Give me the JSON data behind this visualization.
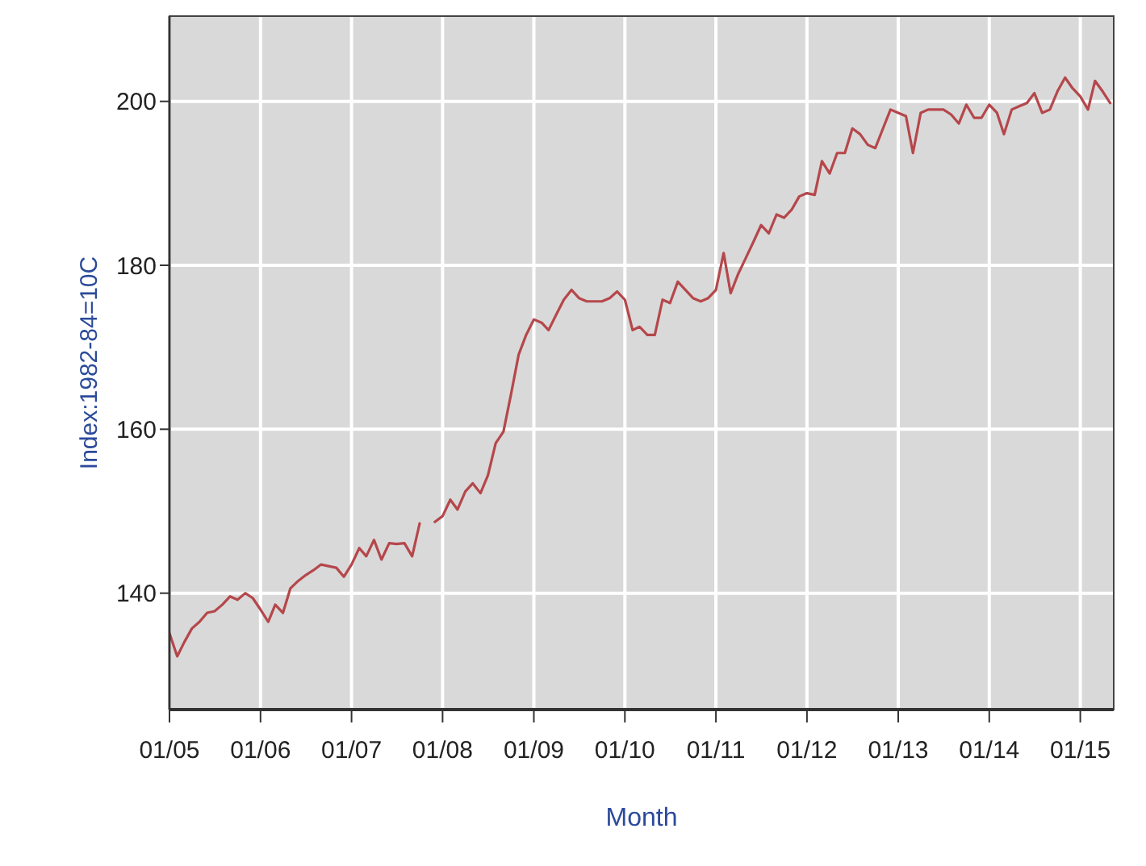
{
  "chart_data": {
    "type": "line",
    "xlabel": "Month",
    "ylabel": "Index:1982-84=10C",
    "x": [
      "2005-01",
      "2005-02",
      "2005-03",
      "2005-04",
      "2005-05",
      "2005-06",
      "2005-07",
      "2005-08",
      "2005-09",
      "2005-10",
      "2005-11",
      "2005-12",
      "2006-01",
      "2006-02",
      "2006-03",
      "2006-04",
      "2006-05",
      "2006-06",
      "2006-07",
      "2006-08",
      "2006-09",
      "2006-10",
      "2006-11",
      "2006-12",
      "2007-01",
      "2007-02",
      "2007-03",
      "2007-04",
      "2007-05",
      "2007-06",
      "2007-07",
      "2007-08",
      "2007-09",
      "2007-10",
      "2007-11",
      "2007-12",
      "2008-01",
      "2008-02",
      "2008-03",
      "2008-04",
      "2008-05",
      "2008-06",
      "2008-07",
      "2008-08",
      "2008-09",
      "2008-10",
      "2008-11",
      "2008-12",
      "2009-01",
      "2009-02",
      "2009-03",
      "2009-04",
      "2009-05",
      "2009-06",
      "2009-07",
      "2009-08",
      "2009-09",
      "2009-10",
      "2009-11",
      "2009-12",
      "2010-01",
      "2010-02",
      "2010-03",
      "2010-04",
      "2010-05",
      "2010-06",
      "2010-07",
      "2010-08",
      "2010-09",
      "2010-10",
      "2010-11",
      "2010-12",
      "2011-01",
      "2011-02",
      "2011-03",
      "2011-04",
      "2011-05",
      "2011-06",
      "2011-07",
      "2011-08",
      "2011-09",
      "2011-10",
      "2011-11",
      "2011-12",
      "2012-01",
      "2012-02",
      "2012-03",
      "2012-04",
      "2012-05",
      "2012-06",
      "2012-07",
      "2012-08",
      "2012-09",
      "2012-10",
      "2012-11",
      "2012-12",
      "2013-01",
      "2013-02",
      "2013-03",
      "2013-04",
      "2013-05",
      "2013-06",
      "2013-07",
      "2013-08",
      "2013-09",
      "2013-10",
      "2013-11",
      "2013-12",
      "2014-01",
      "2014-02",
      "2014-03",
      "2014-04",
      "2014-05",
      "2014-06",
      "2014-07",
      "2014-08",
      "2014-09",
      "2014-10",
      "2014-11",
      "2014-12",
      "2015-01",
      "2015-02",
      "2015-03",
      "2015-04",
      "2015-05"
    ],
    "series": [
      {
        "color": "#b5474b",
        "values": [
          135.1,
          132.3,
          134,
          135.7,
          136.5,
          137.6,
          137.8,
          138.6,
          139.6,
          139.2,
          140,
          139.4,
          138,
          136.5,
          138.6,
          137.6,
          140.6,
          141.5,
          142.2,
          142.8,
          143.5,
          143.3,
          143.1,
          142,
          143.5,
          145.5,
          144.5,
          146.5,
          144.1,
          146.1,
          146,
          146.1,
          144.5,
          148.5,
          null,
          148.7,
          149.4,
          151.4,
          150.2,
          152.4,
          153.4,
          152.2,
          154.4,
          158.3,
          159.7,
          164.2,
          169.1,
          171.5,
          173.4,
          173,
          172.1,
          174,
          175.8,
          177,
          176,
          175.6,
          175.6,
          175.6,
          176,
          176.8,
          175.8,
          172.1,
          172.5,
          171.5,
          171.5,
          175.8,
          175.4,
          178,
          177,
          176,
          175.6,
          176,
          177,
          181.5,
          176.6,
          179,
          180.9,
          182.9,
          184.9,
          183.9,
          186.2,
          185.8,
          186.8,
          188.4,
          188.8,
          188.6,
          192.7,
          191.2,
          193.7,
          193.7,
          196.7,
          196,
          194.7,
          194.3,
          196.7,
          199,
          198.6,
          198.2,
          193.7,
          198.6,
          199,
          199,
          199,
          198.4,
          197.3,
          199.6,
          198,
          198,
          199.6,
          198.6,
          196,
          199,
          199.4,
          199.8,
          201,
          198.6,
          199,
          201.2,
          202.9,
          201.6,
          200.6,
          199,
          202.5,
          201.2,
          199.8
        ]
      }
    ],
    "xlim": [
      "2005-01",
      "2015-05-15"
    ],
    "xticks": [
      {
        "value": "2005-01",
        "label": "01/05"
      },
      {
        "value": "2006-01",
        "label": "01/06"
      },
      {
        "value": "2007-01",
        "label": "01/07"
      },
      {
        "value": "2008-01",
        "label": "01/08"
      },
      {
        "value": "2009-01",
        "label": "01/09"
      },
      {
        "value": "2010-01",
        "label": "01/10"
      },
      {
        "value": "2011-01",
        "label": "01/11"
      },
      {
        "value": "2012-01",
        "label": "01/12"
      },
      {
        "value": "2013-01",
        "label": "01/13"
      },
      {
        "value": "2014-01",
        "label": "01/14"
      },
      {
        "value": "2015-01",
        "label": "01/15"
      }
    ],
    "ylim": [
      125.8,
      210.4
    ],
    "yticks": [
      140,
      160,
      180,
      200
    ],
    "grid": true,
    "marker": "none",
    "line_style": "solid"
  }
}
